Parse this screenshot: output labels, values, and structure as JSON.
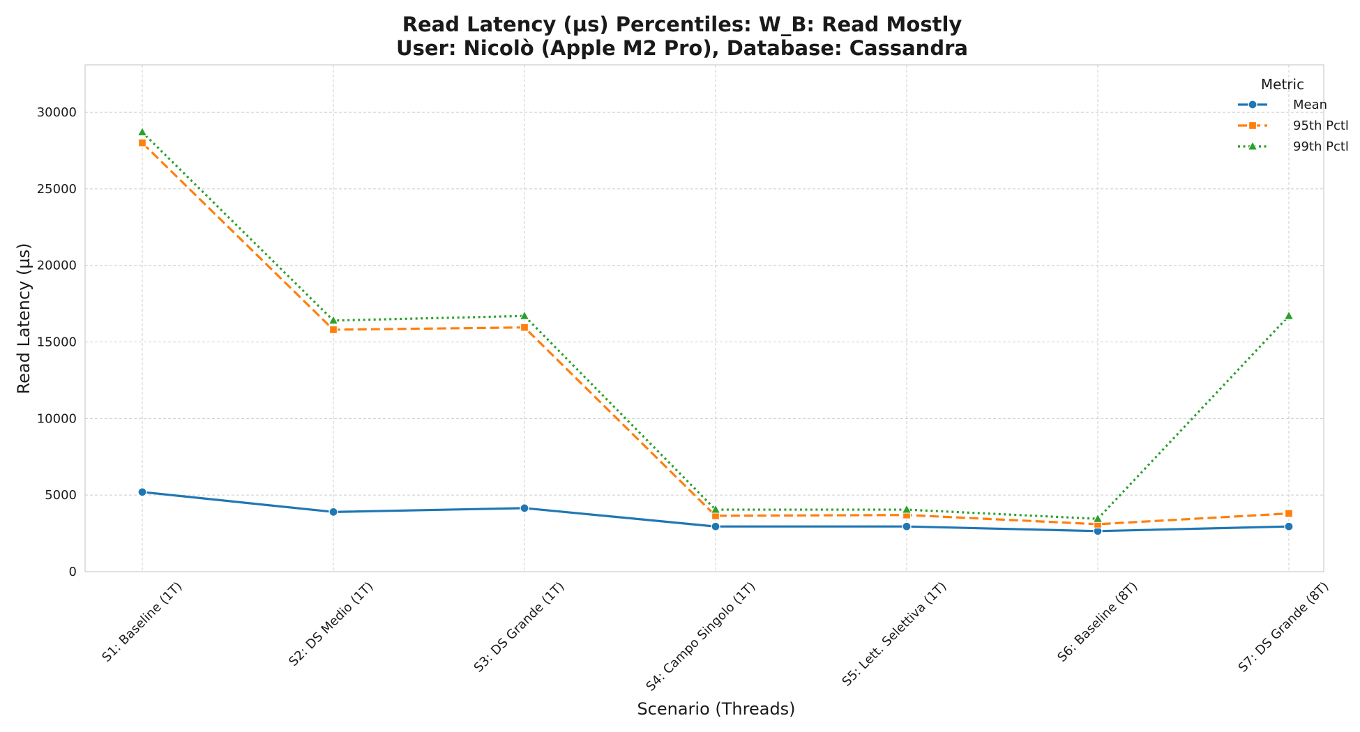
{
  "chart_data": {
    "type": "line",
    "title": "Read Latency (µs) Percentiles: W_B: Read Mostly",
    "subtitle": "User: Nicolò (Apple M2 Pro), Database: Cassandra",
    "xlabel": "Scenario (Threads)",
    "ylabel": "Read Latency (µs)",
    "categories": [
      "S1: Baseline (1T)",
      "S2: DS Medio (1T)",
      "S3: DS Grande (1T)",
      "S4: Campo Singolo (1T)",
      "S5: Lett. Selettiva (1T)",
      "S6: Baseline (8T)",
      "S7: DS Grande (8T)"
    ],
    "ylim": [
      0,
      33100
    ],
    "yticks": [
      0,
      5000,
      10000,
      15000,
      20000,
      25000,
      30000
    ],
    "grid": true,
    "legend": {
      "title": "Metric",
      "placement": "top-right"
    },
    "series": [
      {
        "name": "Mean",
        "color": "#1f77b4",
        "marker": "circle",
        "linestyle": "solid",
        "values": [
          5200,
          3900,
          4150,
          2950,
          2950,
          2650,
          2950
        ]
      },
      {
        "name": "95th Pctl",
        "color": "#ff7f0e",
        "marker": "square",
        "linestyle": "dashed",
        "values": [
          28000,
          15800,
          15950,
          3650,
          3700,
          3100,
          3800
        ]
      },
      {
        "name": "99th Pctl",
        "color": "#2ca02c",
        "marker": "triangle",
        "linestyle": "dotted",
        "values": [
          28700,
          16400,
          16700,
          4050,
          4050,
          3450,
          16700
        ]
      }
    ]
  }
}
